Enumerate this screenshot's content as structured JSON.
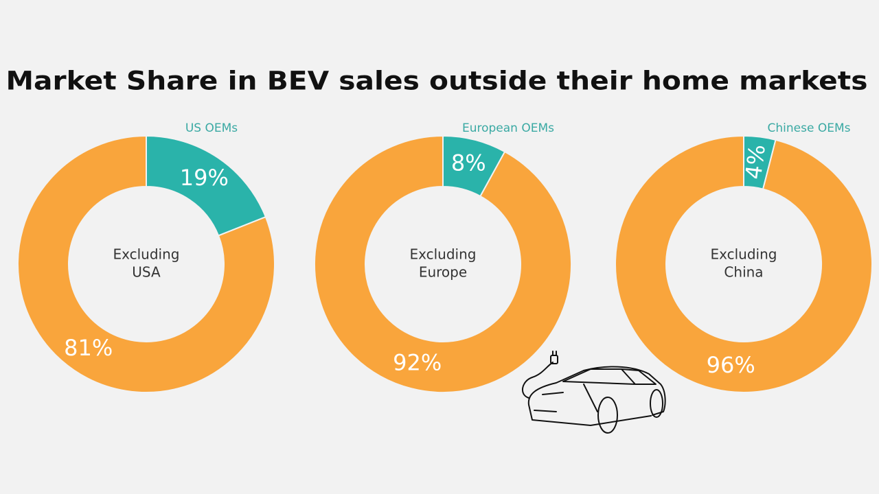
{
  "title": "Market Share in BEV sales outside their home markets",
  "chart_data": [
    {
      "type": "donut",
      "series_label": "US OEMs",
      "center_label": [
        "Excluding",
        "USA"
      ],
      "categories": [
        "US OEMs",
        null
      ],
      "values": [
        19,
        81
      ],
      "value_labels": [
        "19%",
        "81%"
      ],
      "colors": [
        "#2ab3aa",
        "#f9a53c"
      ]
    },
    {
      "type": "donut",
      "series_label": "European OEMs",
      "center_label": [
        "Excluding",
        "Europe"
      ],
      "categories": [
        "European OEMs",
        null
      ],
      "values": [
        8,
        92
      ],
      "value_labels": [
        "8%",
        "92%"
      ],
      "colors": [
        "#2ab3aa",
        "#f9a53c"
      ]
    },
    {
      "type": "donut",
      "series_label": "Chinese OEMs",
      "center_label": [
        "Excluding",
        "China"
      ],
      "categories": [
        "Chinese OEMs",
        null
      ],
      "values": [
        4,
        96
      ],
      "value_labels": [
        "4%",
        "96%"
      ],
      "colors": [
        "#2ab3aa",
        "#f9a53c"
      ]
    }
  ]
}
